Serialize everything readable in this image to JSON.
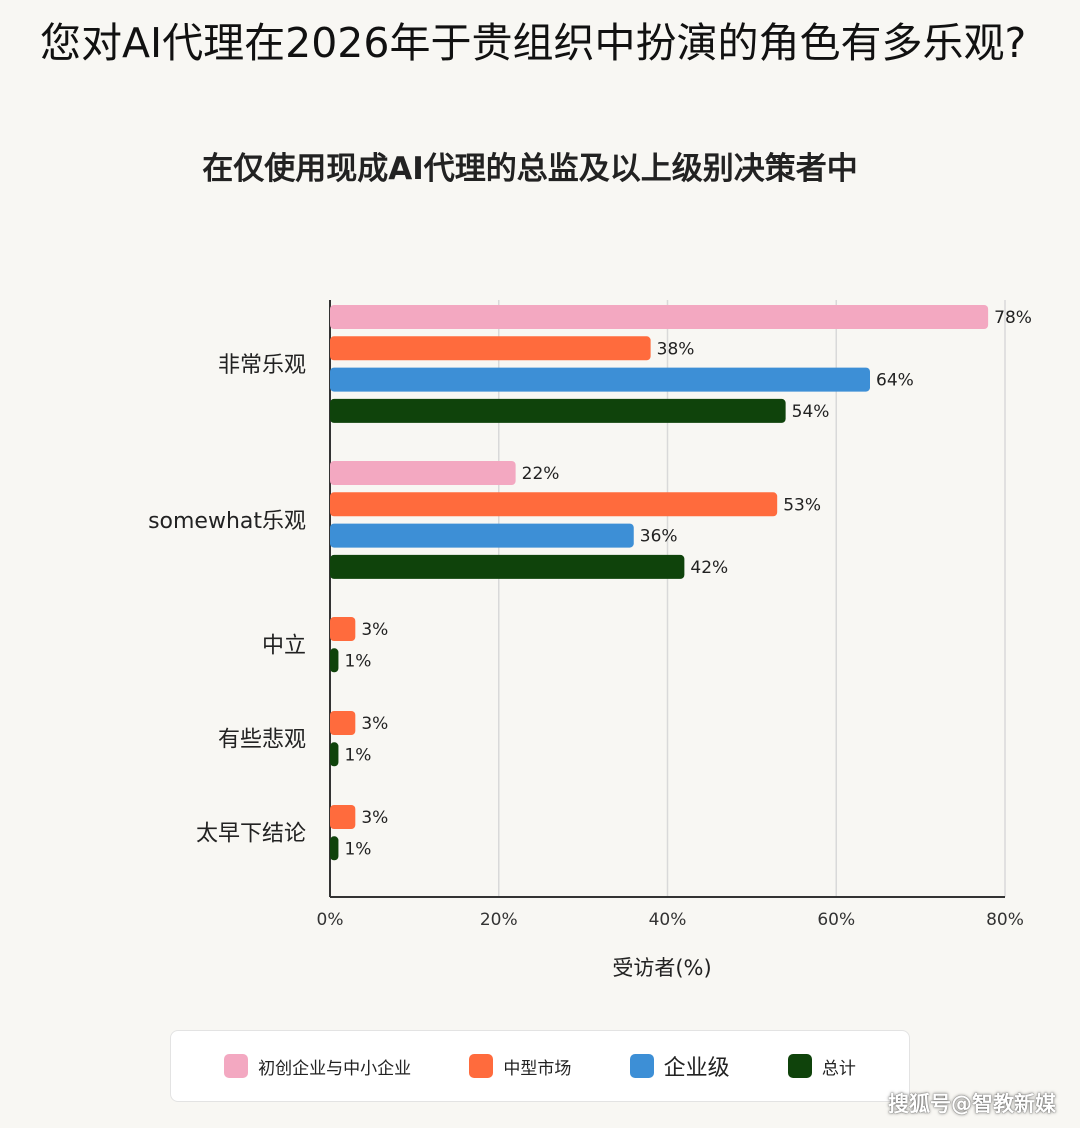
{
  "title": "您对AI代理在2026年于贵组织中扮演的角色有多乐观?",
  "subtitle": "在仅使用现成AI代理的总监及以上级别决策者中",
  "watermark": "搜狐号@智教新媒",
  "colors": {
    "startup": "#f3a8c1",
    "midmarket": "#ff6b3d",
    "enterprise": "#3d8fd6",
    "total": "#0f430b",
    "grid": "#d9d9d9",
    "axis": "#333333"
  },
  "legend": [
    {
      "label": "初创企业与中小企业",
      "color": "#f3a8c1"
    },
    {
      "label": "中型市场",
      "color": "#ff6b3d"
    },
    {
      "label": "企业级",
      "color": "#3d8fd6"
    },
    {
      "label": "总计",
      "color": "#0f430b"
    }
  ],
  "chart_data": {
    "type": "bar",
    "orientation": "horizontal",
    "title": "您对AI代理在2026年于贵组织中扮演的角色有多乐观?",
    "subtitle": "在仅使用现成AI代理的总监及以上级别决策者中",
    "xlabel": "受访者(%)",
    "xlim": [
      0,
      80
    ],
    "xticks": [
      "0%",
      "20%",
      "40%",
      "60%",
      "80%"
    ],
    "grid": true,
    "legend_position": "bottom",
    "categories": [
      "非常乐观",
      "somewhat乐观",
      "中立",
      "有些悲观",
      "太早下结论"
    ],
    "series": [
      {
        "name": "初创企业与中小企业",
        "values": [
          78,
          22,
          null,
          null,
          null
        ]
      },
      {
        "name": "中型市场",
        "values": [
          38,
          53,
          3,
          3,
          3
        ]
      },
      {
        "name": "企业级",
        "values": [
          64,
          36,
          null,
          null,
          null
        ]
      },
      {
        "name": "总计",
        "values": [
          54,
          42,
          1,
          1,
          1
        ]
      }
    ]
  }
}
